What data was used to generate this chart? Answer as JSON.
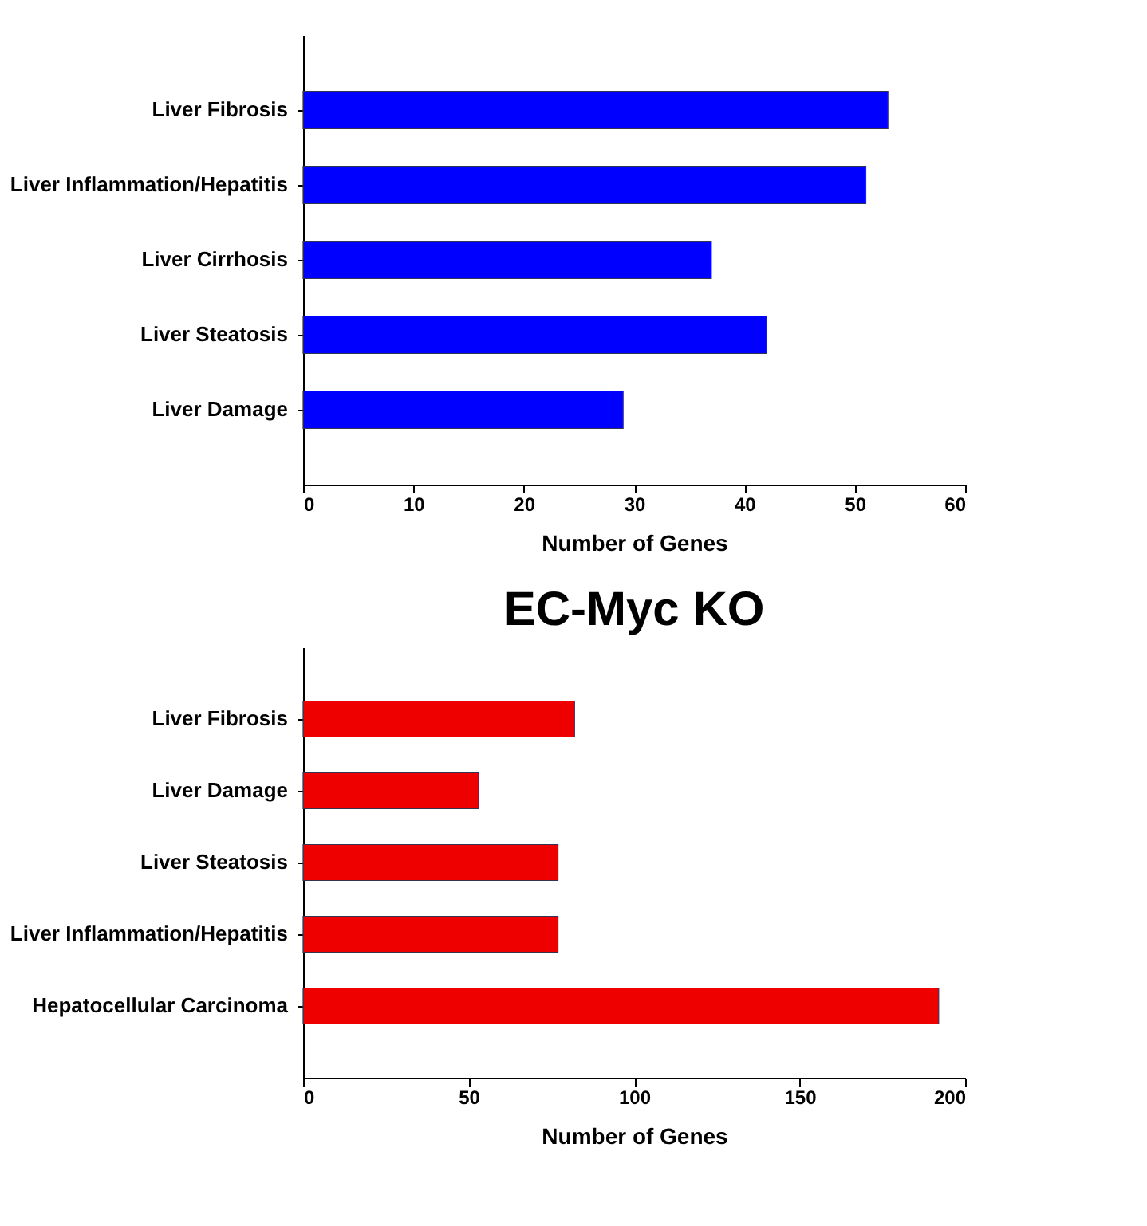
{
  "chart_data": [
    {
      "type": "bar",
      "orientation": "horizontal",
      "categories": [
        "Liver Fibrosis",
        "Liver Inflammation/Hepatitis",
        "Liver Cirrhosis",
        "Liver Steatosis",
        "Liver Damage"
      ],
      "values": [
        53,
        51,
        37,
        42,
        29
      ],
      "color": "#0000ff",
      "xlim": [
        0,
        60
      ],
      "xticks": [
        0,
        10,
        20,
        30,
        40,
        50,
        60
      ],
      "xlabel": "Number of Genes"
    },
    {
      "type": "bar",
      "orientation": "horizontal",
      "title": "EC-Myc KO",
      "categories": [
        "Liver Fibrosis",
        "Liver Damage",
        "Liver Steatosis",
        "Liver Inflammation/Hepatitis",
        "Hepatocellular Carcinoma"
      ],
      "values": [
        82,
        53,
        77,
        77,
        192
      ],
      "color": "#ee0000",
      "xlim": [
        0,
        200
      ],
      "xticks": [
        0,
        50,
        100,
        150,
        200
      ],
      "xlabel": "Number of Genes"
    }
  ]
}
